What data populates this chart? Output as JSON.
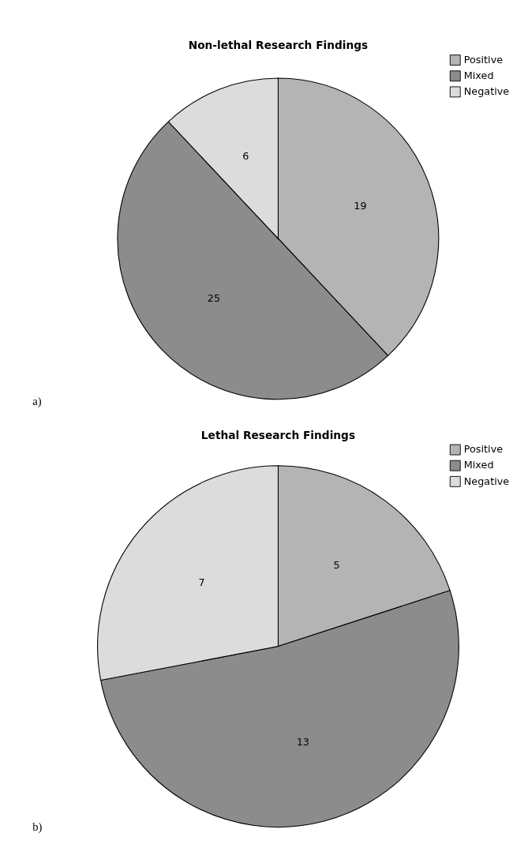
{
  "chart_data": [
    {
      "type": "pie",
      "title": "Non-lethal Research Findings",
      "categories": [
        "Positive",
        "Mixed",
        "Negative"
      ],
      "values": [
        19,
        25,
        6
      ],
      "colors": [
        "#b4b4b4",
        "#8c8c8c",
        "#dcdcdc"
      ],
      "data_labels": true,
      "legend": "top right",
      "annotations": [
        "a)"
      ]
    },
    {
      "type": "pie",
      "title": "Lethal Research Findings",
      "categories": [
        "Positive",
        "Mixed",
        "Negative"
      ],
      "values": [
        5,
        13,
        7
      ],
      "colors": [
        "#b4b4b4",
        "#8c8c8c",
        "#dcdcdc"
      ],
      "data_labels": true,
      "legend": "top right",
      "annotations": [
        "b)"
      ]
    }
  ]
}
